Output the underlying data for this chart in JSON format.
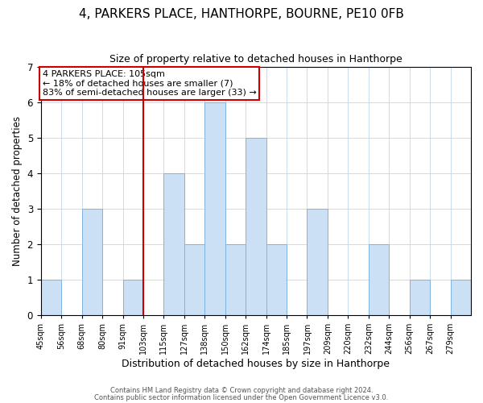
{
  "title": "4, PARKERS PLACE, HANTHORPE, BOURNE, PE10 0FB",
  "subtitle": "Size of property relative to detached houses in Hanthorpe",
  "xlabel": "Distribution of detached houses by size in Hanthorpe",
  "ylabel": "Number of detached properties",
  "bin_labels": [
    "45sqm",
    "56sqm",
    "68sqm",
    "80sqm",
    "91sqm",
    "103sqm",
    "115sqm",
    "127sqm",
    "138sqm",
    "150sqm",
    "162sqm",
    "174sqm",
    "185sqm",
    "197sqm",
    "209sqm",
    "220sqm",
    "232sqm",
    "244sqm",
    "256sqm",
    "267sqm",
    "279sqm"
  ],
  "bar_heights": [
    1,
    0,
    3,
    0,
    1,
    0,
    4,
    2,
    6,
    2,
    5,
    2,
    0,
    3,
    0,
    0,
    2,
    0,
    1,
    0,
    1
  ],
  "bar_color": "#cce0f5",
  "bar_edgecolor": "#7fb3e0",
  "redline_index": 5,
  "ylim": [
    0,
    7
  ],
  "yticks": [
    0,
    1,
    2,
    3,
    4,
    5,
    6,
    7
  ],
  "annotation_text": "4 PARKERS PLACE: 105sqm\n← 18% of detached houses are smaller (7)\n83% of semi-detached houses are larger (33) →",
  "annotation_box_color": "#ffffff",
  "annotation_box_edgecolor": "#cc0000",
  "footer1": "Contains HM Land Registry data © Crown copyright and database right 2024.",
  "footer2": "Contains public sector information licensed under the Open Government Licence v3.0.",
  "background_color": "#ffffff",
  "title_fontsize": 11,
  "subtitle_fontsize": 9,
  "tick_label_fontsize": 7,
  "ylabel_fontsize": 8.5,
  "xlabel_fontsize": 9
}
